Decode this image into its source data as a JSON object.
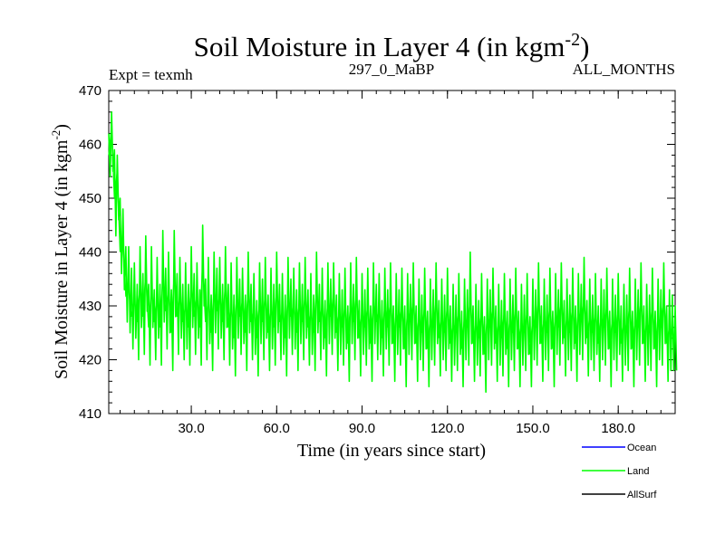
{
  "chart_data": {
    "type": "line",
    "title": "Soil Moisture in Layer 4 (in kgm",
    "title_sup": "-2",
    "title_close": ")",
    "subtitle_left": "Expt = texmh",
    "subtitle_center": "297_0_MaBP",
    "subtitle_right": "ALL_MONTHS",
    "xlabel": "Time (in years since start)",
    "ylabel": "Soil Moisture in Layer 4 (in kgm",
    "ylabel_sup": "-2",
    "ylabel_close": ")",
    "xlim": [
      1,
      200
    ],
    "ylim": [
      410,
      470
    ],
    "x_ticks": [
      30,
      60,
      90,
      120,
      150,
      180
    ],
    "x_tick_labels": [
      "30.0",
      "60.0",
      "90.0",
      "120.0",
      "150.0",
      "180.0"
    ],
    "y_ticks": [
      410,
      420,
      430,
      440,
      450,
      460,
      470
    ],
    "y_tick_labels": [
      "410",
      "420",
      "430",
      "440",
      "450",
      "460",
      "470"
    ],
    "legend": [
      {
        "name": "Ocean",
        "color": "#0000ff"
      },
      {
        "name": "Land",
        "color": "#00ff00"
      },
      {
        "name": "AllSurf",
        "color": "#000000"
      }
    ],
    "series": [
      {
        "name": "Land",
        "color": "#00ff00",
        "x": [
          1,
          2,
          3,
          4,
          5,
          6,
          7,
          8,
          9,
          10,
          11,
          12,
          13,
          14,
          15,
          16,
          17,
          18,
          19,
          20,
          21,
          22,
          23,
          24,
          25,
          26,
          27,
          28,
          29,
          30,
          31,
          32,
          33,
          34,
          35,
          36,
          37,
          38,
          39,
          40,
          41,
          42,
          43,
          44,
          45,
          46,
          47,
          48,
          49,
          50,
          51,
          52,
          53,
          54,
          55,
          56,
          57,
          58,
          59,
          60,
          61,
          62,
          63,
          64,
          65,
          66,
          67,
          68,
          69,
          70,
          71,
          72,
          73,
          74,
          75,
          76,
          77,
          78,
          79,
          80,
          81,
          82,
          83,
          84,
          85,
          86,
          87,
          88,
          89,
          90,
          91,
          92,
          93,
          94,
          95,
          96,
          97,
          98,
          99,
          100,
          101,
          102,
          103,
          104,
          105,
          106,
          107,
          108,
          109,
          110,
          111,
          112,
          113,
          114,
          115,
          116,
          117,
          118,
          119,
          120,
          121,
          122,
          123,
          124,
          125,
          126,
          127,
          128,
          129,
          130,
          131,
          132,
          133,
          134,
          135,
          136,
          137,
          138,
          139,
          140,
          141,
          142,
          143,
          144,
          145,
          146,
          147,
          148,
          149,
          150,
          151,
          152,
          153,
          154,
          155,
          156,
          157,
          158,
          159,
          160,
          161,
          162,
          163,
          164,
          165,
          166,
          167,
          168,
          169,
          170,
          171,
          172,
          173,
          174,
          175,
          176,
          177,
          178,
          179,
          180,
          181,
          182,
          183,
          184,
          185,
          186,
          187,
          188,
          189,
          190,
          191,
          192,
          193,
          194,
          195,
          196,
          197,
          198,
          199,
          200
        ],
        "values": [
          458,
          463,
          450,
          455,
          440,
          442,
          432,
          433,
          428,
          431,
          427,
          434,
          428,
          436,
          426,
          433,
          427,
          431,
          426,
          435,
          429,
          433,
          425,
          436,
          428,
          432,
          427,
          430,
          426,
          434,
          428,
          432,
          426,
          438,
          427,
          431,
          425,
          433,
          429,
          432,
          427,
          434,
          426,
          430,
          424,
          432,
          428,
          431,
          425,
          433,
          427,
          429,
          424,
          431,
          427,
          432,
          425,
          430,
          426,
          433,
          427,
          429,
          424,
          432,
          428,
          430,
          425,
          431,
          427,
          432,
          426,
          429,
          425,
          433,
          427,
          430,
          424,
          431,
          428,
          432,
          425,
          429,
          426,
          430,
          423,
          431,
          427,
          432,
          424,
          429,
          426,
          430,
          423,
          431,
          427,
          429,
          424,
          430,
          426,
          431,
          423,
          429,
          426,
          430,
          422,
          429,
          427,
          431,
          423,
          428,
          425,
          430,
          422,
          428,
          426,
          431,
          424,
          428,
          425,
          430,
          423,
          427,
          425,
          429,
          422,
          428,
          426,
          431,
          423,
          427,
          424,
          429,
          421,
          428,
          426,
          430,
          423,
          427,
          424,
          429,
          422,
          428,
          425,
          430,
          422,
          427,
          425,
          429,
          421,
          428,
          426,
          431,
          423,
          428,
          425,
          430,
          422,
          429,
          426,
          431,
          424,
          428,
          425,
          430,
          423,
          429,
          427,
          431,
          424,
          428,
          425,
          429,
          423,
          428,
          426,
          430,
          422,
          428,
          425,
          429,
          423,
          427,
          425,
          430,
          422,
          428,
          426,
          431,
          423,
          427,
          425,
          430,
          422,
          428,
          426,
          431,
          423,
          426,
          425,
          424
        ],
        "upper": [
          462,
          466,
          459,
          458,
          450,
          448,
          441,
          441,
          437,
          438,
          434,
          441,
          436,
          443,
          434,
          441,
          433,
          439,
          434,
          444,
          437,
          440,
          433,
          444,
          436,
          439,
          434,
          438,
          434,
          441,
          436,
          438,
          433,
          445,
          435,
          439,
          432,
          440,
          437,
          439,
          434,
          441,
          434,
          438,
          432,
          439,
          435,
          437,
          432,
          440,
          434,
          436,
          431,
          438,
          435,
          439,
          432,
          437,
          434,
          440,
          434,
          436,
          432,
          439,
          435,
          437,
          433,
          438,
          434,
          439,
          433,
          436,
          432,
          440,
          434,
          437,
          431,
          438,
          435,
          438,
          432,
          436,
          433,
          437,
          430,
          438,
          434,
          439,
          431,
          436,
          433,
          437,
          430,
          438,
          434,
          436,
          431,
          437,
          433,
          438,
          430,
          436,
          433,
          437,
          430,
          436,
          434,
          438,
          430,
          435,
          432,
          437,
          429,
          435,
          433,
          438,
          431,
          435,
          432,
          437,
          430,
          434,
          432,
          436,
          429,
          435,
          433,
          440,
          430,
          434,
          431,
          436,
          428,
          435,
          433,
          437,
          430,
          434,
          431,
          436,
          429,
          435,
          432,
          437,
          429,
          434,
          432,
          436,
          428,
          435,
          433,
          438,
          430,
          435,
          432,
          437,
          429,
          436,
          433,
          438,
          431,
          435,
          432,
          437,
          430,
          436,
          434,
          439,
          431,
          435,
          432,
          436,
          430,
          435,
          433,
          437,
          429,
          435,
          432,
          436,
          430,
          434,
          432,
          437,
          429,
          435,
          433,
          438,
          430,
          434,
          432,
          437,
          429,
          435,
          433,
          438,
          430,
          433,
          432,
          430
        ],
        "lower": [
          454,
          455,
          443,
          446,
          436,
          433,
          427,
          425,
          422,
          424,
          420,
          426,
          421,
          429,
          419,
          426,
          420,
          424,
          419,
          427,
          422,
          425,
          418,
          428,
          421,
          424,
          420,
          422,
          419,
          426,
          421,
          424,
          419,
          430,
          420,
          423,
          418,
          425,
          422,
          424,
          420,
          426,
          419,
          422,
          417,
          424,
          421,
          423,
          418,
          425,
          420,
          421,
          417,
          423,
          420,
          424,
          418,
          422,
          419,
          425,
          420,
          421,
          417,
          424,
          421,
          422,
          418,
          423,
          420,
          424,
          419,
          421,
          418,
          425,
          420,
          422,
          417,
          423,
          421,
          424,
          418,
          421,
          419,
          422,
          416,
          423,
          420,
          424,
          417,
          421,
          419,
          422,
          416,
          423,
          420,
          421,
          417,
          422,
          419,
          423,
          416,
          421,
          419,
          422,
          415,
          421,
          420,
          423,
          416,
          420,
          418,
          422,
          415,
          420,
          419,
          423,
          417,
          420,
          418,
          422,
          416,
          419,
          418,
          421,
          415,
          420,
          419,
          423,
          416,
          419,
          417,
          421,
          414,
          420,
          419,
          422,
          416,
          419,
          417,
          421,
          415,
          420,
          418,
          422,
          415,
          419,
          418,
          421,
          415,
          420,
          419,
          423,
          416,
          420,
          418,
          422,
          415,
          421,
          419,
          423,
          417,
          420,
          418,
          422,
          416,
          421,
          420,
          423,
          417,
          420,
          418,
          421,
          416,
          420,
          419,
          422,
          415,
          420,
          418,
          421,
          416,
          419,
          418,
          422,
          415,
          420,
          419,
          423,
          416,
          419,
          418,
          422,
          415,
          420,
          419,
          423,
          416,
          418,
          418,
          418
        ]
      }
    ]
  }
}
